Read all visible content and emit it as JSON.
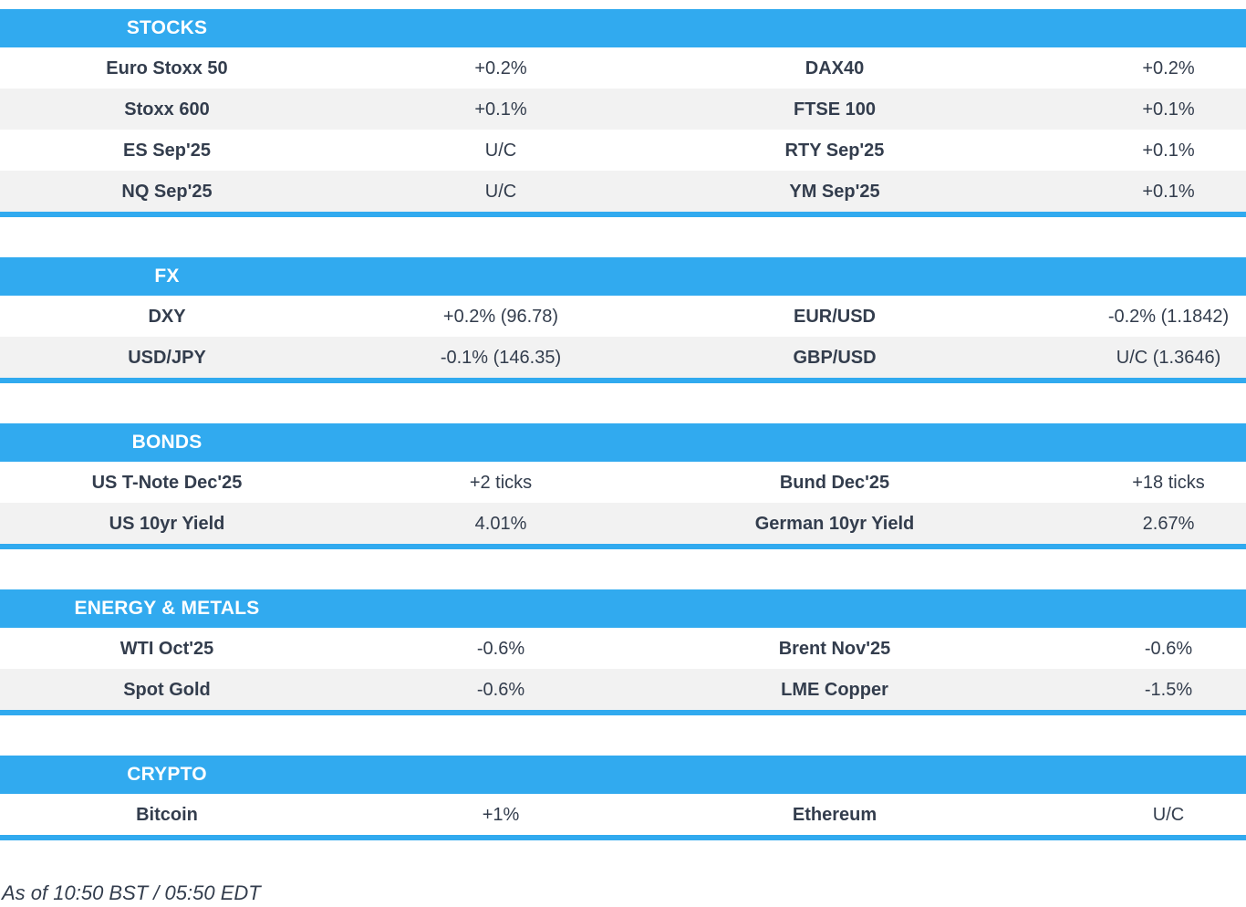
{
  "colors": {
    "accent_blue": "#31aaef",
    "row_alt_gray": "#f2f2f2",
    "text": "#333d4d",
    "header_text": "#ffffff"
  },
  "sections": [
    {
      "title": "STOCKS",
      "rows": [
        [
          "Euro Stoxx 50",
          "+0.2%",
          "DAX40",
          "+0.2%"
        ],
        [
          "Stoxx 600",
          "+0.1%",
          "FTSE 100",
          "+0.1%"
        ],
        [
          "ES Sep'25",
          "U/C",
          "RTY Sep'25",
          "+0.1%"
        ],
        [
          "NQ Sep'25",
          "U/C",
          "YM Sep'25",
          "+0.1%"
        ]
      ]
    },
    {
      "title": "FX",
      "rows": [
        [
          "DXY",
          "+0.2% (96.78)",
          "EUR/USD",
          "-0.2% (1.1842)"
        ],
        [
          "USD/JPY",
          "-0.1% (146.35)",
          "GBP/USD",
          "U/C (1.3646)"
        ]
      ]
    },
    {
      "title": "BONDS",
      "rows": [
        [
          "US T-Note Dec'25",
          "+2 ticks",
          "Bund Dec'25",
          "+18 ticks"
        ],
        [
          "US 10yr Yield",
          "4.01%",
          "German 10yr Yield",
          "2.67%"
        ]
      ]
    },
    {
      "title": "ENERGY & METALS",
      "rows": [
        [
          "WTI Oct'25",
          "-0.6%",
          "Brent Nov'25",
          "-0.6%"
        ],
        [
          "Spot Gold",
          "-0.6%",
          "LME Copper",
          "-1.5%"
        ]
      ]
    },
    {
      "title": "CRYPTO",
      "rows": [
        [
          "Bitcoin",
          "+1%",
          "Ethereum",
          "U/C"
        ]
      ]
    }
  ],
  "footer": {
    "as_of": "As of 10:50 BST / 05:50 EDT"
  }
}
